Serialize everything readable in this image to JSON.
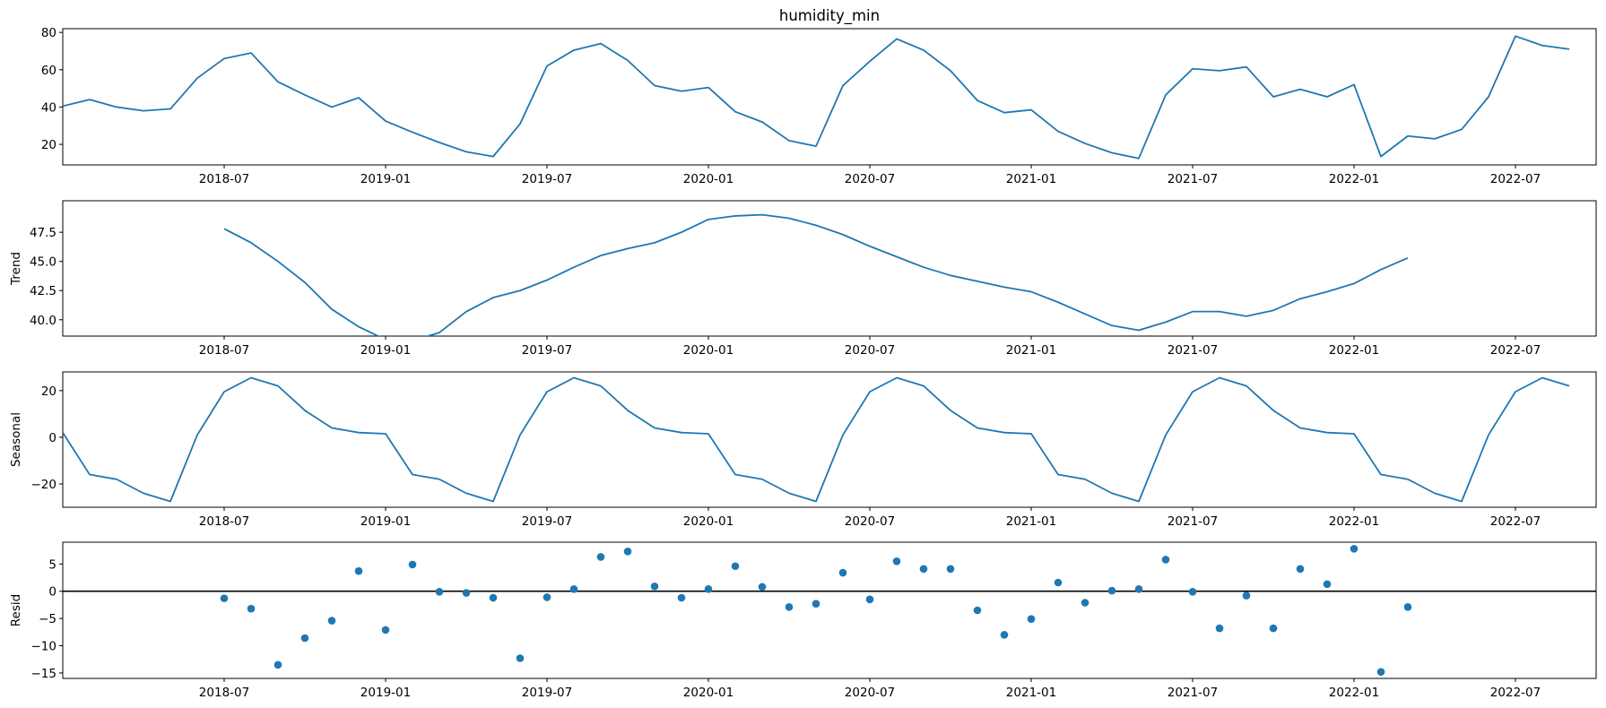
{
  "title": "humidity_min",
  "colors": {
    "series": "#1f77b4",
    "zero_line": "#000000",
    "axes": "#000000"
  },
  "x_start": "2018-01",
  "x_tick_labels": [
    "2018-07",
    "2019-01",
    "2019-07",
    "2020-01",
    "2020-07",
    "2021-01",
    "2021-07",
    "2022-01",
    "2022-07"
  ],
  "chart_data": [
    {
      "type": "line",
      "ylabel": "",
      "grid": false,
      "xlim": [
        "2018-01",
        "2022-10"
      ],
      "ylim": [
        9,
        82
      ],
      "yticks": [
        20,
        40,
        60,
        80
      ],
      "ytick_labels": [
        "20",
        "40",
        "60",
        "80"
      ],
      "values": [
        40.5,
        44,
        40,
        38,
        39,
        55.5,
        66,
        69,
        53.5,
        46.5,
        40,
        45,
        32.5,
        26.5,
        21,
        16,
        13.5,
        31,
        62,
        70.5,
        74,
        65,
        51.5,
        48.5,
        50.5,
        37.5,
        32,
        22,
        19,
        51.5,
        64.5,
        76.5,
        70.5,
        59.5,
        43.5,
        37,
        38.5,
        27,
        20.5,
        15.5,
        12.5,
        46.5,
        60.5,
        59.5,
        61.5,
        45.5,
        49.5,
        45.5,
        52,
        13.5,
        24.5,
        23,
        28,
        45.5,
        78,
        73,
        71
      ]
    },
    {
      "type": "line",
      "ylabel": "Trend",
      "grid": false,
      "xlim": [
        "2018-01",
        "2022-10"
      ],
      "ylim": [
        38.6,
        50.2
      ],
      "yticks": [
        40,
        42.5,
        45,
        47.5
      ],
      "ytick_labels": [
        "40.0",
        "42.5",
        "45.0",
        "47.5"
      ],
      "values": [
        null,
        null,
        null,
        null,
        null,
        null,
        47.8,
        46.6,
        45.0,
        43.2,
        40.9,
        39.4,
        38.3,
        38.2,
        38.9,
        40.7,
        41.9,
        42.5,
        43.4,
        44.5,
        45.5,
        46.1,
        46.6,
        47.5,
        48.6,
        48.9,
        49.0,
        48.7,
        48.1,
        47.3,
        46.3,
        45.4,
        44.5,
        43.8,
        43.3,
        42.8,
        42.4,
        41.5,
        40.5,
        39.5,
        39.1,
        39.8,
        40.7,
        40.7,
        40.3,
        40.8,
        41.8,
        42.4,
        43.1,
        44.3,
        45.3,
        null,
        null,
        null,
        null,
        null,
        null
      ]
    },
    {
      "type": "line",
      "ylabel": "Seasonal",
      "grid": false,
      "xlim": [
        "2018-01",
        "2022-10"
      ],
      "ylim": [
        -30,
        28
      ],
      "yticks": [
        -20,
        0,
        20
      ],
      "ytick_labels": [
        "−20",
        "0",
        "20"
      ],
      "values": [
        2,
        -16,
        -18,
        -24,
        -27.5,
        1,
        19.5,
        25.5,
        22,
        11.5,
        4,
        2,
        1.5,
        -16,
        -18,
        -24,
        -27.5,
        1,
        19.5,
        25.5,
        22,
        11.5,
        4,
        2,
        1.5,
        -16,
        -18,
        -24,
        -27.5,
        1,
        19.5,
        25.5,
        22,
        11.5,
        4,
        2,
        1.5,
        -16,
        -18,
        -24,
        -27.5,
        1,
        19.5,
        25.5,
        22,
        11.5,
        4,
        2,
        1.5,
        -16,
        -18,
        -24,
        -27.5,
        1,
        19.5,
        25.5,
        22
      ]
    },
    {
      "type": "scatter",
      "ylabel": "Resid",
      "grid": false,
      "xlim": [
        "2018-01",
        "2022-10"
      ],
      "ylim": [
        -16,
        9
      ],
      "yticks": [
        -15,
        -10,
        -5,
        0,
        5
      ],
      "ytick_labels": [
        "−15",
        "−10",
        "−5",
        "0",
        "5"
      ],
      "zero_line": 0,
      "values": [
        null,
        null,
        null,
        null,
        null,
        null,
        -1.3,
        -3.2,
        -13.5,
        -8.6,
        -5.4,
        3.7,
        -7.1,
        4.9,
        -0.1,
        -0.3,
        -1.2,
        -12.3,
        -1.1,
        0.4,
        6.3,
        7.3,
        0.9,
        -1.2,
        0.4,
        4.6,
        0.8,
        -2.9,
        -2.3,
        3.4,
        -1.5,
        5.5,
        4.1,
        4.1,
        -3.5,
        -8.0,
        -5.1,
        1.6,
        -2.1,
        0.1,
        0.4,
        5.8,
        -0.1,
        -6.8,
        -0.8,
        -6.8,
        4.1,
        1.3,
        7.8,
        -14.8,
        -2.9,
        null,
        null,
        null,
        null,
        null,
        null
      ]
    }
  ]
}
